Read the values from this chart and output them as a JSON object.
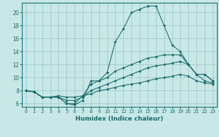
{
  "xlabel": "Humidex (Indice chaleur)",
  "background_color": "#c8e8e8",
  "grid_color": "#a0c8c8",
  "line_color": "#1a6b6b",
  "xlim": [
    -0.5,
    23.5
  ],
  "ylim": [
    5.5,
    21.5
  ],
  "xticks": [
    0,
    1,
    2,
    3,
    4,
    5,
    6,
    7,
    8,
    9,
    10,
    11,
    12,
    13,
    14,
    15,
    16,
    17,
    18,
    19,
    20,
    21,
    22,
    23
  ],
  "yticks": [
    6,
    8,
    10,
    12,
    14,
    16,
    18,
    20
  ],
  "series": [
    {
      "x": [
        0,
        1,
        2,
        3,
        4,
        5,
        6,
        7,
        8,
        9,
        10,
        11,
        12,
        13,
        14,
        15,
        16,
        17,
        18,
        19,
        20,
        21,
        22,
        23
      ],
      "y": [
        8.0,
        7.8,
        7.0,
        7.0,
        7.0,
        6.0,
        5.8,
        6.5,
        9.5,
        9.5,
        10.8,
        15.5,
        17.5,
        20.0,
        20.5,
        21.0,
        21.0,
        18.0,
        15.0,
        14.0,
        12.0,
        10.5,
        10.5,
        9.5
      ]
    },
    {
      "x": [
        0,
        1,
        2,
        3,
        4,
        5,
        6,
        7,
        8,
        9,
        10,
        11,
        12,
        13,
        14,
        15,
        16,
        17,
        18,
        19,
        20,
        21,
        22,
        23
      ],
      "y": [
        8.0,
        7.8,
        7.0,
        7.0,
        7.0,
        6.0,
        6.0,
        7.2,
        9.0,
        9.5,
        10.0,
        11.0,
        11.5,
        12.0,
        12.5,
        13.0,
        13.2,
        13.5,
        13.5,
        13.5,
        12.0,
        10.5,
        10.5,
        9.5
      ]
    },
    {
      "x": [
        0,
        1,
        2,
        3,
        4,
        5,
        6,
        7,
        8,
        9,
        10,
        11,
        12,
        13,
        14,
        15,
        16,
        17,
        18,
        19,
        20,
        21,
        22,
        23
      ],
      "y": [
        8.0,
        7.8,
        7.0,
        7.0,
        7.0,
        6.5,
        6.5,
        7.0,
        8.0,
        8.5,
        9.0,
        9.5,
        10.0,
        10.5,
        11.0,
        11.5,
        11.8,
        12.0,
        12.2,
        12.5,
        12.0,
        10.5,
        9.5,
        9.2
      ]
    },
    {
      "x": [
        0,
        1,
        2,
        3,
        4,
        5,
        6,
        7,
        8,
        9,
        10,
        11,
        12,
        13,
        14,
        15,
        16,
        17,
        18,
        19,
        20,
        21,
        22,
        23
      ],
      "y": [
        8.0,
        7.8,
        7.0,
        7.0,
        7.2,
        7.0,
        7.0,
        7.2,
        7.5,
        8.0,
        8.2,
        8.5,
        8.8,
        9.0,
        9.2,
        9.5,
        9.8,
        10.0,
        10.2,
        10.5,
        10.2,
        9.5,
        9.2,
        9.0
      ]
    }
  ]
}
